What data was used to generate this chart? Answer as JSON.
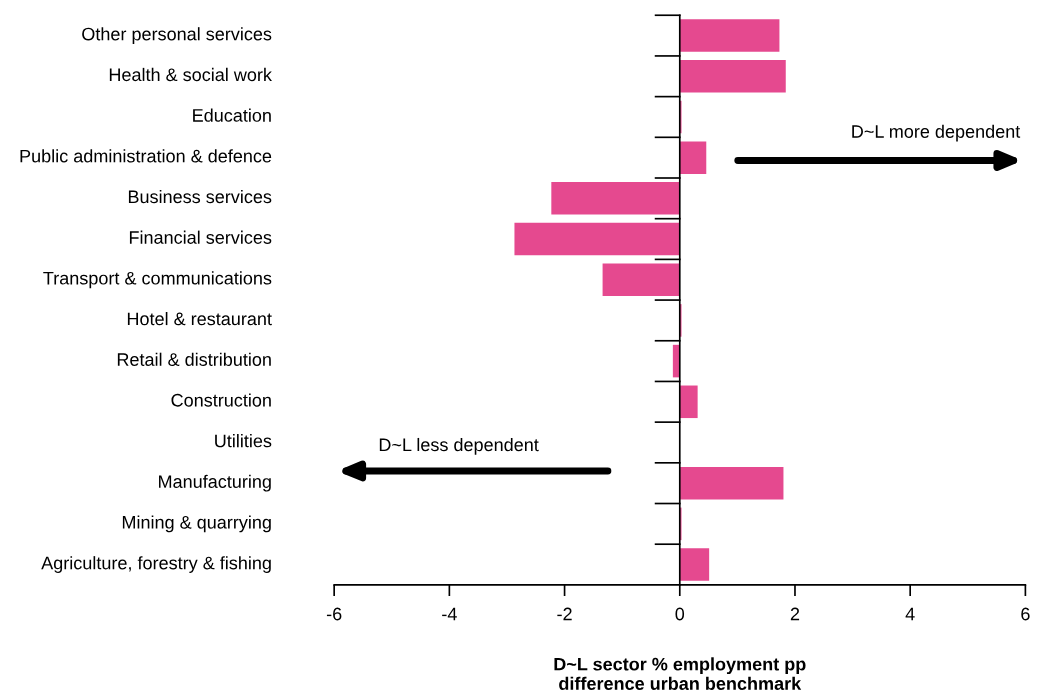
{
  "chart_data": {
    "type": "bar",
    "orientation": "horizontal",
    "xlabel": "D~L sector % employment pp\ndifference urban benchmark",
    "categories": [
      "Other personal services",
      "Health & social work",
      "Education",
      "Public administration & defence",
      "Business services",
      "Financial services",
      "Transport & communications",
      "Hotel & restaurant",
      "Retail & distribution",
      "Construction",
      "Utilities",
      "Manufacturing",
      "Mining & quarrying",
      "Agriculture, forestry & fishing"
    ],
    "values": [
      1.73,
      1.84,
      0.03,
      0.46,
      -2.23,
      -2.87,
      -1.34,
      0.03,
      -0.12,
      0.31,
      0,
      1.8,
      0.03,
      0.51
    ],
    "color": "#e5498f",
    "xlim": [
      -6,
      6
    ],
    "xticks": [
      -6,
      -4,
      -2,
      0,
      2,
      4,
      6
    ],
    "legend": false,
    "annotations": [
      "D~L more dependent",
      "D~L less dependent"
    ]
  }
}
